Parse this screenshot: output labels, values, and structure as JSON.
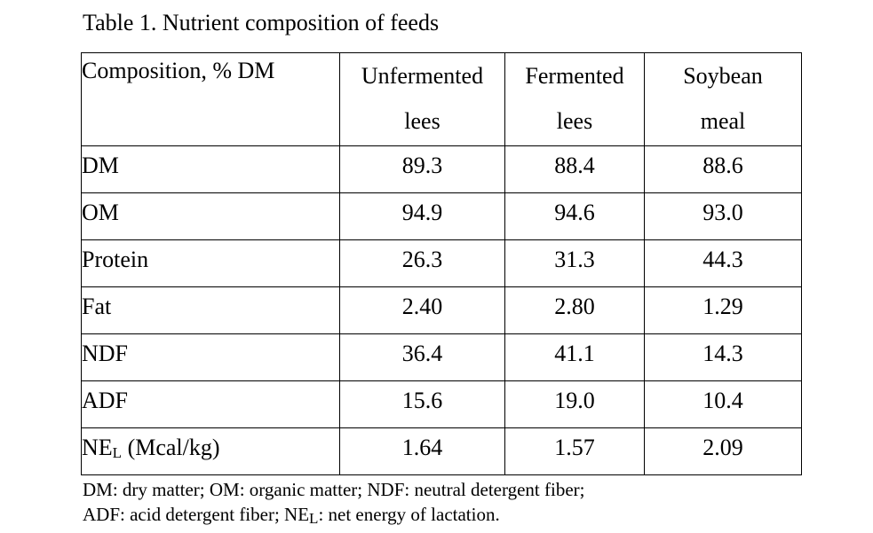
{
  "caption": "Table 1. Nutrient composition of feeds",
  "table": {
    "headers": [
      {
        "line1": "Composition, % DM",
        "line2": ""
      },
      {
        "line1": "Unfermented",
        "line2": "lees"
      },
      {
        "line1": "Fermented",
        "line2": "lees"
      },
      {
        "line1": "Soybean",
        "line2": "meal"
      }
    ],
    "rows": [
      {
        "label": "DM",
        "label_sub": "",
        "label_suffix": "",
        "values": [
          "89.3",
          "88.4",
          "88.6"
        ]
      },
      {
        "label": "OM",
        "label_sub": "",
        "label_suffix": "",
        "values": [
          "94.9",
          "94.6",
          "93.0"
        ]
      },
      {
        "label": "Protein",
        "label_sub": "",
        "label_suffix": "",
        "values": [
          "26.3",
          "31.3",
          "44.3"
        ]
      },
      {
        "label": "Fat",
        "label_sub": "",
        "label_suffix": "",
        "values": [
          "2.40",
          "2.80",
          "1.29"
        ]
      },
      {
        "label": "NDF",
        "label_sub": "",
        "label_suffix": "",
        "values": [
          "36.4",
          "41.1",
          "14.3"
        ]
      },
      {
        "label": "ADF",
        "label_sub": "",
        "label_suffix": "",
        "values": [
          "15.6",
          "19.0",
          "10.4"
        ]
      },
      {
        "label": "NE",
        "label_sub": "L",
        "label_suffix": " (Mcal/kg)",
        "values": [
          "1.64",
          "1.57",
          "2.09"
        ]
      }
    ]
  },
  "footnote": {
    "line1": "DM: dry matter; OM: organic matter; NDF: neutral detergent fiber;",
    "line2_before": "ADF: acid detergent fiber; NE",
    "line2_sub": "L",
    "line2_after": ": net energy of lactation."
  }
}
